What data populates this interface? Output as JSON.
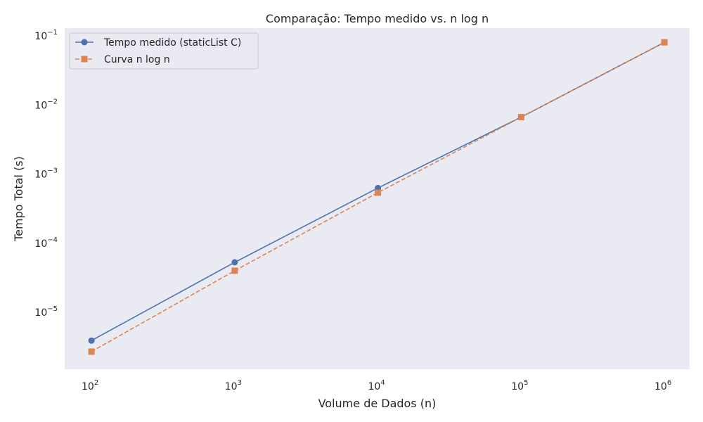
{
  "chart_data": {
    "type": "line",
    "title": "Comparação: Tempo medido vs. n log n",
    "xlabel": "Volume de Dados (n)",
    "ylabel": "Tempo Total (s)",
    "xscale": "log",
    "yscale": "log",
    "xlim": [
      65,
      1500000
    ],
    "ylim": [
      1.5e-06,
      0.13
    ],
    "x": [
      100,
      1000,
      10000,
      100000,
      1000000
    ],
    "x_ticks": [
      {
        "base": "10",
        "exp": "2",
        "value": 100
      },
      {
        "base": "10",
        "exp": "3",
        "value": 1000
      },
      {
        "base": "10",
        "exp": "4",
        "value": 10000
      },
      {
        "base": "10",
        "exp": "5",
        "value": 100000
      },
      {
        "base": "10",
        "exp": "6",
        "value": 1000000
      }
    ],
    "y_ticks": [
      {
        "base": "10",
        "exp": "−5",
        "value": 1e-05
      },
      {
        "base": "10",
        "exp": "−4",
        "value": 0.0001
      },
      {
        "base": "10",
        "exp": "−3",
        "value": 0.001
      },
      {
        "base": "10",
        "exp": "−2",
        "value": 0.01
      },
      {
        "base": "10",
        "exp": "−1",
        "value": 0.1
      }
    ],
    "series": [
      {
        "name": "Tempo medido (staticList C)",
        "values": [
          3.9e-06,
          5.3e-05,
          0.00063,
          0.0067,
          0.081
        ],
        "color": "#4c72b0",
        "marker": "circle",
        "linestyle": "solid"
      },
      {
        "name": "Curva n log n",
        "values": [
          2.7e-06,
          4e-05,
          0.00054,
          0.0067,
          0.081
        ],
        "color": "#dd8452",
        "marker": "square",
        "linestyle": "dashed"
      }
    ],
    "legend_position": "top-left",
    "grid": false,
    "background": "#eaeaf2"
  }
}
